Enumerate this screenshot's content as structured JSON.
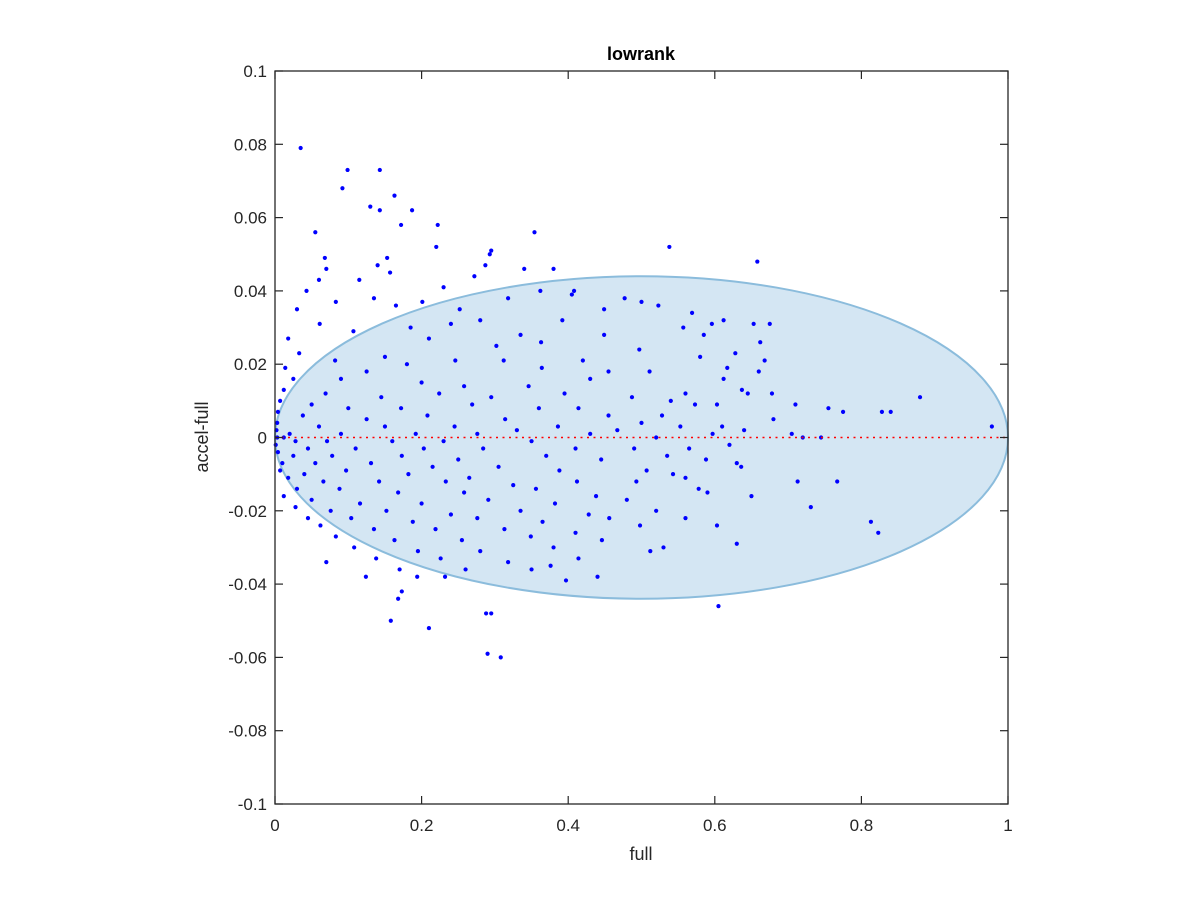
{
  "chart_data": {
    "type": "scatter",
    "title": "lowrank",
    "xlabel": "full",
    "ylabel": "accel-full",
    "xlim": [
      0,
      1
    ],
    "ylim": [
      -0.1,
      0.1
    ],
    "xticks": [
      0,
      0.2,
      0.4,
      0.6,
      0.8,
      1
    ],
    "xtick_labels": [
      "0",
      "0.2",
      "0.4",
      "0.6",
      "0.8",
      "1"
    ],
    "yticks": [
      -0.1,
      -0.08,
      -0.06,
      -0.04,
      -0.02,
      0,
      0.02,
      0.04,
      0.06,
      0.08,
      0.1
    ],
    "ytick_labels": [
      "-0.1",
      "-0.08",
      "-0.06",
      "-0.04",
      "-0.02",
      "0",
      "0.02",
      "0.04",
      "0.06",
      "0.08",
      "0.1"
    ],
    "grid": false,
    "box": true,
    "reference_line": {
      "y": 0,
      "style": "dotted",
      "color": "#ff0000"
    },
    "ellipse": {
      "center_x": 0.5,
      "center_y": 0.0,
      "radius_x": 0.5,
      "radius_y": 0.044,
      "fill": "#d4e6f3",
      "stroke": "#8bbcdc"
    },
    "series": [
      {
        "marker_color": "#0000ff",
        "points": [
          [
            0.035,
            0.079
          ],
          [
            0.099,
            0.073
          ],
          [
            0.143,
            0.073
          ],
          [
            0.092,
            0.068
          ],
          [
            0.163,
            0.066
          ],
          [
            0.13,
            0.063
          ],
          [
            0.143,
            0.062
          ],
          [
            0.187,
            0.062
          ],
          [
            0.172,
            0.058
          ],
          [
            0.222,
            0.058
          ],
          [
            0.354,
            0.056
          ],
          [
            0.055,
            0.056
          ],
          [
            0.22,
            0.052
          ],
          [
            0.538,
            0.052
          ],
          [
            0.295,
            0.051
          ],
          [
            0.293,
            0.05
          ],
          [
            0.068,
            0.049
          ],
          [
            0.153,
            0.049
          ],
          [
            0.658,
            0.048
          ],
          [
            0.287,
            0.047
          ],
          [
            0.14,
            0.047
          ],
          [
            0.07,
            0.046
          ],
          [
            0.34,
            0.046
          ],
          [
            0.38,
            0.046
          ],
          [
            0.06,
            0.043
          ],
          [
            0.115,
            0.043
          ],
          [
            0.272,
            0.044
          ],
          [
            0.157,
            0.045
          ],
          [
            0.23,
            0.041
          ],
          [
            0.408,
            0.04
          ],
          [
            0.362,
            0.04
          ],
          [
            0.405,
            0.039
          ],
          [
            0.043,
            0.04
          ],
          [
            0.135,
            0.038
          ],
          [
            0.477,
            0.038
          ],
          [
            0.318,
            0.038
          ],
          [
            0.083,
            0.037
          ],
          [
            0.201,
            0.037
          ],
          [
            0.165,
            0.036
          ],
          [
            0.5,
            0.037
          ],
          [
            0.03,
            0.035
          ],
          [
            0.252,
            0.035
          ],
          [
            0.449,
            0.035
          ],
          [
            0.28,
            0.032
          ],
          [
            0.523,
            0.036
          ],
          [
            0.612,
            0.032
          ],
          [
            0.653,
            0.031
          ],
          [
            0.569,
            0.034
          ],
          [
            0.596,
            0.031
          ],
          [
            0.675,
            0.031
          ],
          [
            0.392,
            0.032
          ],
          [
            0.24,
            0.031
          ],
          [
            0.185,
            0.03
          ],
          [
            0.061,
            0.031
          ],
          [
            0.107,
            0.029
          ],
          [
            0.335,
            0.028
          ],
          [
            0.449,
            0.028
          ],
          [
            0.557,
            0.03
          ],
          [
            0.585,
            0.028
          ],
          [
            0.662,
            0.026
          ],
          [
            0.018,
            0.027
          ],
          [
            0.21,
            0.027
          ],
          [
            0.302,
            0.025
          ],
          [
            0.363,
            0.026
          ],
          [
            0.497,
            0.024
          ],
          [
            0.628,
            0.023
          ],
          [
            0.617,
            0.019
          ],
          [
            0.668,
            0.021
          ],
          [
            0.033,
            0.023
          ],
          [
            0.082,
            0.021
          ],
          [
            0.15,
            0.022
          ],
          [
            0.246,
            0.021
          ],
          [
            0.42,
            0.021
          ],
          [
            0.58,
            0.022
          ],
          [
            0.312,
            0.021
          ],
          [
            0.364,
            0.019
          ],
          [
            0.014,
            0.019
          ],
          [
            0.125,
            0.018
          ],
          [
            0.18,
            0.02
          ],
          [
            0.455,
            0.018
          ],
          [
            0.511,
            0.018
          ],
          [
            0.612,
            0.016
          ],
          [
            0.66,
            0.018
          ],
          [
            0.025,
            0.016
          ],
          [
            0.09,
            0.016
          ],
          [
            0.2,
            0.015
          ],
          [
            0.258,
            0.014
          ],
          [
            0.43,
            0.016
          ],
          [
            0.56,
            0.012
          ],
          [
            0.678,
            0.012
          ],
          [
            0.637,
            0.013
          ],
          [
            0.346,
            0.014
          ],
          [
            0.012,
            0.013
          ],
          [
            0.069,
            0.012
          ],
          [
            0.145,
            0.011
          ],
          [
            0.224,
            0.012
          ],
          [
            0.295,
            0.011
          ],
          [
            0.395,
            0.012
          ],
          [
            0.487,
            0.011
          ],
          [
            0.54,
            0.01
          ],
          [
            0.603,
            0.009
          ],
          [
            0.645,
            0.012
          ],
          [
            0.007,
            0.01
          ],
          [
            0.05,
            0.009
          ],
          [
            0.1,
            0.008
          ],
          [
            0.172,
            0.008
          ],
          [
            0.269,
            0.009
          ],
          [
            0.36,
            0.008
          ],
          [
            0.414,
            0.008
          ],
          [
            0.528,
            0.006
          ],
          [
            0.573,
            0.009
          ],
          [
            0.71,
            0.009
          ],
          [
            0.755,
            0.008
          ],
          [
            0.775,
            0.007
          ],
          [
            0.828,
            0.007
          ],
          [
            0.84,
            0.007
          ],
          [
            0.88,
            0.011
          ],
          [
            0.004,
            0.007
          ],
          [
            0.038,
            0.006
          ],
          [
            0.125,
            0.005
          ],
          [
            0.208,
            0.006
          ],
          [
            0.314,
            0.005
          ],
          [
            0.455,
            0.006
          ],
          [
            0.5,
            0.004
          ],
          [
            0.61,
            0.003
          ],
          [
            0.68,
            0.005
          ],
          [
            0.003,
            0.004
          ],
          [
            0.06,
            0.003
          ],
          [
            0.15,
            0.003
          ],
          [
            0.245,
            0.003
          ],
          [
            0.33,
            0.002
          ],
          [
            0.386,
            0.003
          ],
          [
            0.467,
            0.002
          ],
          [
            0.553,
            0.003
          ],
          [
            0.64,
            0.002
          ],
          [
            0.978,
            0.003
          ],
          [
            0.002,
            0.002
          ],
          [
            0.02,
            0.001
          ],
          [
            0.09,
            0.001
          ],
          [
            0.192,
            0.001
          ],
          [
            0.276,
            0.001
          ],
          [
            0.43,
            0.001
          ],
          [
            0.52,
            0.0
          ],
          [
            0.597,
            0.001
          ],
          [
            0.705,
            0.001
          ],
          [
            0.72,
            0.0
          ],
          [
            0.745,
            0.0
          ],
          [
            0.003,
            0.0
          ],
          [
            0.012,
            0.0
          ],
          [
            0.028,
            -0.001
          ],
          [
            0.071,
            -0.001
          ],
          [
            0.16,
            -0.001
          ],
          [
            0.23,
            -0.001
          ],
          [
            0.35,
            -0.001
          ],
          [
            0.62,
            -0.002
          ],
          [
            0.001,
            -0.002
          ],
          [
            0.045,
            -0.003
          ],
          [
            0.11,
            -0.003
          ],
          [
            0.203,
            -0.003
          ],
          [
            0.284,
            -0.003
          ],
          [
            0.41,
            -0.003
          ],
          [
            0.49,
            -0.003
          ],
          [
            0.565,
            -0.003
          ],
          [
            0.004,
            -0.004
          ],
          [
            0.025,
            -0.005
          ],
          [
            0.078,
            -0.005
          ],
          [
            0.173,
            -0.005
          ],
          [
            0.25,
            -0.006
          ],
          [
            0.37,
            -0.005
          ],
          [
            0.445,
            -0.006
          ],
          [
            0.535,
            -0.005
          ],
          [
            0.588,
            -0.006
          ],
          [
            0.01,
            -0.007
          ],
          [
            0.055,
            -0.007
          ],
          [
            0.131,
            -0.007
          ],
          [
            0.215,
            -0.008
          ],
          [
            0.305,
            -0.008
          ],
          [
            0.63,
            -0.007
          ],
          [
            0.636,
            -0.008
          ],
          [
            0.007,
            -0.009
          ],
          [
            0.04,
            -0.01
          ],
          [
            0.097,
            -0.009
          ],
          [
            0.182,
            -0.01
          ],
          [
            0.265,
            -0.011
          ],
          [
            0.388,
            -0.009
          ],
          [
            0.507,
            -0.009
          ],
          [
            0.543,
            -0.01
          ],
          [
            0.018,
            -0.011
          ],
          [
            0.066,
            -0.012
          ],
          [
            0.142,
            -0.012
          ],
          [
            0.233,
            -0.012
          ],
          [
            0.325,
            -0.013
          ],
          [
            0.412,
            -0.012
          ],
          [
            0.493,
            -0.012
          ],
          [
            0.56,
            -0.011
          ],
          [
            0.713,
            -0.012
          ],
          [
            0.767,
            -0.012
          ],
          [
            0.03,
            -0.014
          ],
          [
            0.088,
            -0.014
          ],
          [
            0.168,
            -0.015
          ],
          [
            0.258,
            -0.015
          ],
          [
            0.356,
            -0.014
          ],
          [
            0.438,
            -0.016
          ],
          [
            0.578,
            -0.014
          ],
          [
            0.65,
            -0.016
          ],
          [
            0.012,
            -0.016
          ],
          [
            0.05,
            -0.017
          ],
          [
            0.116,
            -0.018
          ],
          [
            0.2,
            -0.018
          ],
          [
            0.291,
            -0.017
          ],
          [
            0.382,
            -0.018
          ],
          [
            0.48,
            -0.017
          ],
          [
            0.59,
            -0.015
          ],
          [
            0.028,
            -0.019
          ],
          [
            0.076,
            -0.02
          ],
          [
            0.152,
            -0.02
          ],
          [
            0.24,
            -0.021
          ],
          [
            0.335,
            -0.02
          ],
          [
            0.428,
            -0.021
          ],
          [
            0.52,
            -0.02
          ],
          [
            0.731,
            -0.019
          ],
          [
            0.045,
            -0.022
          ],
          [
            0.104,
            -0.022
          ],
          [
            0.188,
            -0.023
          ],
          [
            0.276,
            -0.022
          ],
          [
            0.365,
            -0.023
          ],
          [
            0.456,
            -0.022
          ],
          [
            0.56,
            -0.022
          ],
          [
            0.603,
            -0.024
          ],
          [
            0.813,
            -0.023
          ],
          [
            0.823,
            -0.026
          ],
          [
            0.062,
            -0.024
          ],
          [
            0.135,
            -0.025
          ],
          [
            0.219,
            -0.025
          ],
          [
            0.313,
            -0.025
          ],
          [
            0.41,
            -0.026
          ],
          [
            0.498,
            -0.024
          ],
          [
            0.083,
            -0.027
          ],
          [
            0.163,
            -0.028
          ],
          [
            0.255,
            -0.028
          ],
          [
            0.349,
            -0.027
          ],
          [
            0.446,
            -0.028
          ],
          [
            0.108,
            -0.03
          ],
          [
            0.195,
            -0.031
          ],
          [
            0.28,
            -0.031
          ],
          [
            0.38,
            -0.03
          ],
          [
            0.53,
            -0.03
          ],
          [
            0.63,
            -0.029
          ],
          [
            0.138,
            -0.033
          ],
          [
            0.226,
            -0.033
          ],
          [
            0.318,
            -0.034
          ],
          [
            0.414,
            -0.033
          ],
          [
            0.512,
            -0.031
          ],
          [
            0.07,
            -0.034
          ],
          [
            0.17,
            -0.036
          ],
          [
            0.26,
            -0.036
          ],
          [
            0.35,
            -0.036
          ],
          [
            0.376,
            -0.035
          ],
          [
            0.44,
            -0.038
          ],
          [
            0.124,
            -0.038
          ],
          [
            0.194,
            -0.038
          ],
          [
            0.232,
            -0.038
          ],
          [
            0.397,
            -0.039
          ],
          [
            0.168,
            -0.044
          ],
          [
            0.173,
            -0.042
          ],
          [
            0.158,
            -0.05
          ],
          [
            0.21,
            -0.052
          ],
          [
            0.288,
            -0.048
          ],
          [
            0.295,
            -0.048
          ],
          [
            0.605,
            -0.046
          ],
          [
            0.29,
            -0.059
          ],
          [
            0.308,
            -0.06
          ]
        ]
      }
    ]
  }
}
